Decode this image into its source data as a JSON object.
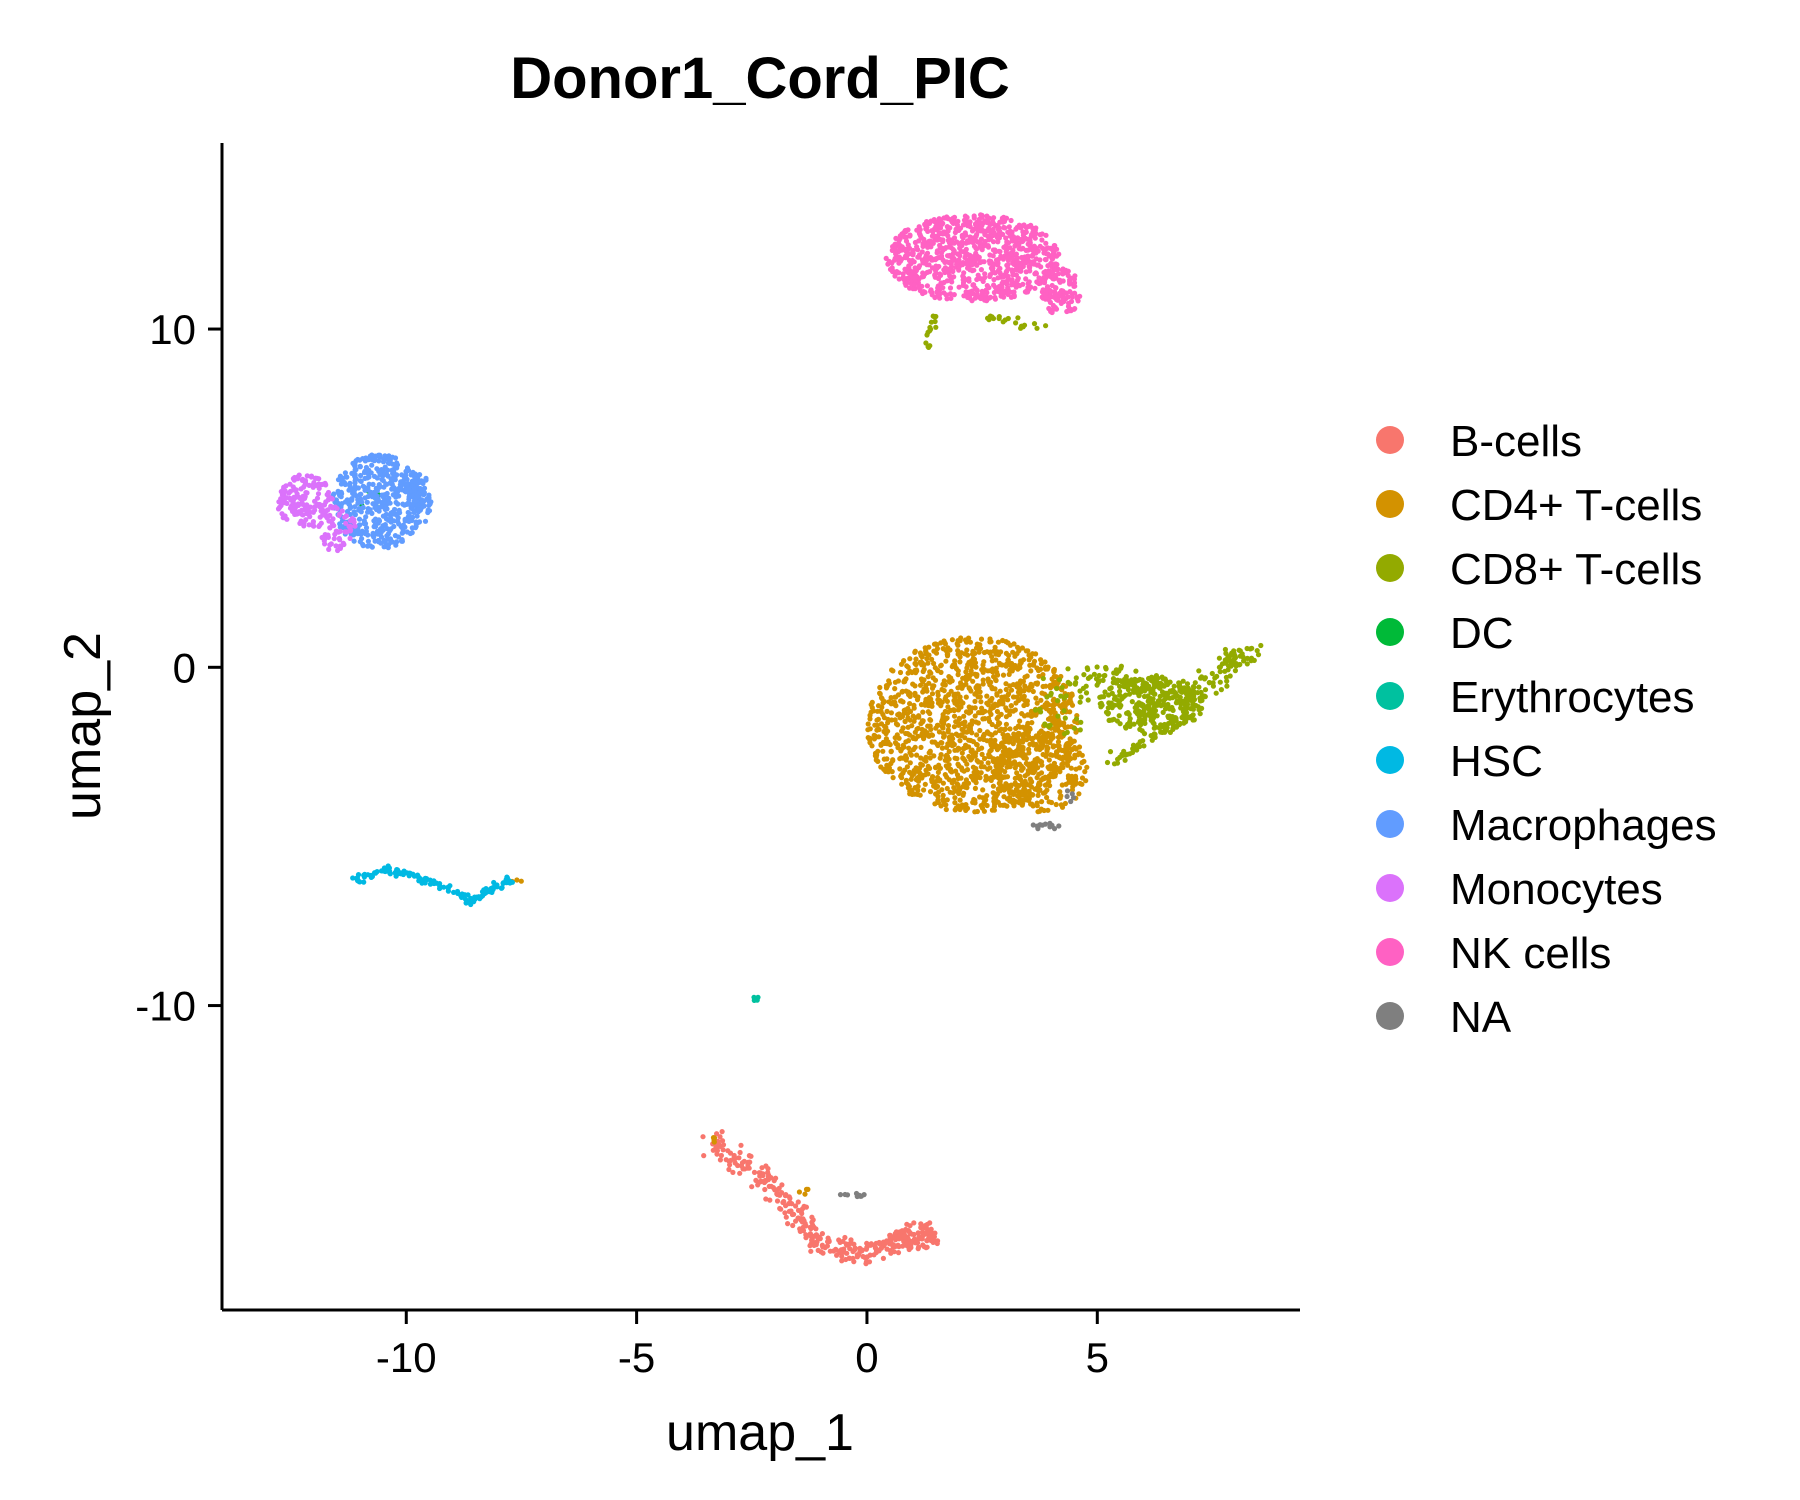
{
  "chart_data": {
    "type": "scatter",
    "title": "Donor1_Cord_PIC",
    "xlabel": "umap_1",
    "ylabel": "umap_2",
    "xlim": [
      -14,
      9.4
    ],
    "ylim": [
      -19,
      15.5
    ],
    "x_ticks": [
      {
        "value": -10,
        "label": "-10"
      },
      {
        "value": -5,
        "label": "-5"
      },
      {
        "value": 0,
        "label": "0"
      },
      {
        "value": 5,
        "label": "5"
      }
    ],
    "y_ticks": [
      {
        "value": -10,
        "label": "-10"
      },
      {
        "value": 0,
        "label": "0"
      },
      {
        "value": 10,
        "label": "10"
      }
    ],
    "grid": false,
    "legend_position": "right",
    "series": [
      {
        "name": "B-cells",
        "color": "#F8766D",
        "clusters": [
          {
            "shape": "path",
            "path": [
              [
                -3.4,
                -14.0
              ],
              [
                -2.8,
                -14.5
              ],
              [
                -2.1,
                -15.3
              ],
              [
                -1.6,
                -16.0
              ],
              [
                -1.2,
                -16.8
              ],
              [
                -0.7,
                -17.2
              ],
              [
                0.0,
                -17.3
              ],
              [
                0.7,
                -17.0
              ],
              [
                1.4,
                -16.6
              ]
            ],
            "spread": [
              0.25,
              0.35
            ],
            "count": 320
          },
          {
            "shape": "ellipse",
            "cx": 1.0,
            "cy": -16.9,
            "rx": 0.6,
            "ry": 0.3,
            "count": 60
          }
        ]
      },
      {
        "name": "CD4+ T-cells",
        "color": "#D39200",
        "clusters": [
          {
            "shape": "ellipse",
            "cx": 2.3,
            "cy": -1.7,
            "rx": 2.3,
            "ry": 2.6,
            "count": 1400
          },
          {
            "shape": "ellipse",
            "cx": 3.8,
            "cy": -3.0,
            "rx": 1.0,
            "ry": 1.3,
            "count": 220
          },
          {
            "shape": "ellipse",
            "cx": -7.6,
            "cy": -6.3,
            "rx": 0.15,
            "ry": 0.1,
            "count": 4
          },
          {
            "shape": "ellipse",
            "cx": -3.3,
            "cy": -14.0,
            "rx": 0.15,
            "ry": 0.1,
            "count": 4
          },
          {
            "shape": "ellipse",
            "cx": -1.3,
            "cy": -15.5,
            "rx": 0.2,
            "ry": 0.1,
            "count": 4
          }
        ]
      },
      {
        "name": "CD8+ T-cells",
        "color": "#93AA00",
        "clusters": [
          {
            "shape": "ellipse",
            "cx": 6.2,
            "cy": -1.1,
            "rx": 1.2,
            "ry": 0.8,
            "count": 300
          },
          {
            "shape": "path",
            "path": [
              [
                4.8,
                -0.2
              ],
              [
                5.8,
                -0.4
              ],
              [
                7.0,
                -0.8
              ],
              [
                7.9,
                0.0
              ],
              [
                8.2,
                0.5
              ]
            ],
            "spread": [
              0.35,
              0.3
            ],
            "count": 150
          },
          {
            "shape": "path",
            "path": [
              [
                5.3,
                -2.8
              ],
              [
                6.0,
                -2.2
              ],
              [
                6.8,
                -1.5
              ]
            ],
            "spread": [
              0.2,
              0.2
            ],
            "count": 50
          },
          {
            "shape": "ellipse",
            "cx": 4.3,
            "cy": -1.0,
            "rx": 0.7,
            "ry": 1.0,
            "count": 40
          },
          {
            "shape": "path",
            "path": [
              [
                1.3,
                9.4
              ],
              [
                1.4,
                10.0
              ],
              [
                1.5,
                10.4
              ]
            ],
            "spread": [
              0.08,
              0.1
            ],
            "count": 15
          },
          {
            "shape": "path",
            "path": [
              [
                2.6,
                10.4
              ],
              [
                3.3,
                10.1
              ],
              [
                4.0,
                10.1
              ]
            ],
            "spread": [
              0.25,
              0.12
            ],
            "count": 20
          }
        ]
      },
      {
        "name": "DC",
        "color": "#00BA38",
        "clusters": [
          {
            "shape": "ellipse",
            "cx": -10.8,
            "cy": 5.0,
            "rx": 0.3,
            "ry": 0.3,
            "count": 5
          }
        ]
      },
      {
        "name": "Erythrocytes",
        "color": "#00C19F",
        "clusters": [
          {
            "shape": "ellipse",
            "cx": -2.4,
            "cy": -9.8,
            "rx": 0.07,
            "ry": 0.07,
            "count": 6
          }
        ]
      },
      {
        "name": "HSC",
        "color": "#00B9E3",
        "clusters": [
          {
            "shape": "path",
            "path": [
              [
                -11.1,
                -6.3
              ],
              [
                -10.6,
                -6.0
              ],
              [
                -10.0,
                -6.1
              ],
              [
                -9.3,
                -6.4
              ],
              [
                -8.6,
                -6.9
              ],
              [
                -8.1,
                -6.5
              ],
              [
                -7.7,
                -6.3
              ]
            ],
            "spread": [
              0.1,
              0.12
            ],
            "count": 140
          }
        ]
      },
      {
        "name": "Macrophages",
        "color": "#619CFF",
        "clusters": [
          {
            "shape": "ellipse",
            "cx": -10.6,
            "cy": 4.9,
            "rx": 1.0,
            "ry": 1.4,
            "count": 480
          },
          {
            "shape": "ellipse",
            "cx": -9.7,
            "cy": 5.0,
            "rx": 0.25,
            "ry": 0.8,
            "count": 60
          }
        ]
      },
      {
        "name": "Monocytes",
        "color": "#DB72FB",
        "clusters": [
          {
            "shape": "ellipse",
            "cx": -12.2,
            "cy": 4.9,
            "rx": 0.6,
            "ry": 0.8,
            "count": 150
          },
          {
            "shape": "ellipse",
            "cx": -11.5,
            "cy": 4.1,
            "rx": 0.4,
            "ry": 0.7,
            "count": 60
          }
        ]
      },
      {
        "name": "NK cells",
        "color": "#FF61C3",
        "clusters": [
          {
            "shape": "ellipse",
            "cx": 2.3,
            "cy": 12.1,
            "rx": 1.9,
            "ry": 1.3,
            "count": 900
          },
          {
            "shape": "ellipse",
            "cx": 4.2,
            "cy": 11.1,
            "rx": 0.45,
            "ry": 0.7,
            "count": 110
          }
        ]
      },
      {
        "name": "NA",
        "color": "#7F7F7F",
        "clusters": [
          {
            "shape": "ellipse",
            "cx": -0.3,
            "cy": -15.6,
            "rx": 0.3,
            "ry": 0.06,
            "count": 10
          },
          {
            "shape": "ellipse",
            "cx": 3.9,
            "cy": -4.7,
            "rx": 0.4,
            "ry": 0.1,
            "count": 12
          },
          {
            "shape": "ellipse",
            "cx": 4.4,
            "cy": -3.8,
            "rx": 0.1,
            "ry": 0.2,
            "count": 5
          }
        ]
      }
    ]
  }
}
